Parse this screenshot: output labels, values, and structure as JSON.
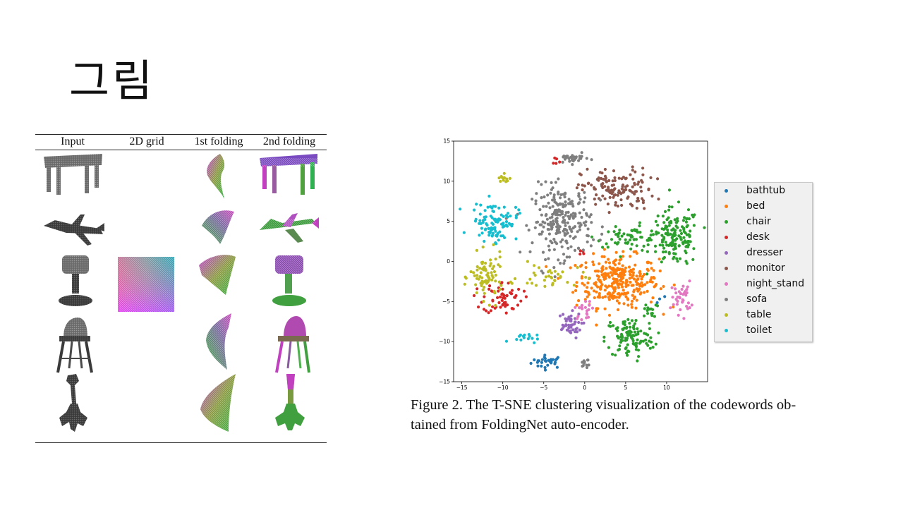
{
  "slide": {
    "title": "그림"
  },
  "table": {
    "headers": [
      "Input",
      "2D grid",
      "1st folding",
      "2nd folding"
    ]
  },
  "legend": [
    {
      "label": "bathtub",
      "color": "#1f77b4"
    },
    {
      "label": "bed",
      "color": "#ff7f0e"
    },
    {
      "label": "chair",
      "color": "#2ca02c"
    },
    {
      "label": "desk",
      "color": "#d62728"
    },
    {
      "label": "dresser",
      "color": "#9467bd"
    },
    {
      "label": "monitor",
      "color": "#8c564b"
    },
    {
      "label": "night_stand",
      "color": "#e377c2"
    },
    {
      "label": "sofa",
      "color": "#7f7f7f"
    },
    {
      "label": "table",
      "color": "#bcbd22"
    },
    {
      "label": "toilet",
      "color": "#17becf"
    }
  ],
  "caption": {
    "line1": "Figure 2. The T-SNE clustering visualization of the codewords ob-",
    "line2": "tained from FoldingNet auto-encoder."
  },
  "chart_data": {
    "type": "scatter",
    "title": "",
    "xlabel": "",
    "ylabel": "",
    "xlim": [
      -16,
      15
    ],
    "ylim": [
      -15,
      15
    ],
    "xticks": [
      "−15",
      "−10",
      "−5",
      "0",
      "5",
      "10"
    ],
    "yticks": [
      "15",
      "10",
      "5",
      "0",
      "−5",
      "−10",
      "−15"
    ],
    "legend_position": "outside-right",
    "series": [
      {
        "name": "bathtub",
        "clusters": [
          {
            "cx": -4.5,
            "cy": -12.5,
            "sx": 1.0,
            "sy": 0.4,
            "n": 30
          },
          {
            "cx": 9.5,
            "cy": -5.0,
            "sx": 0.4,
            "sy": 0.4,
            "n": 3
          }
        ]
      },
      {
        "name": "bed",
        "clusters": [
          {
            "cx": 4.0,
            "cy": -2.5,
            "sx": 2.5,
            "sy": 1.6,
            "n": 300
          }
        ]
      },
      {
        "name": "chair",
        "clusters": [
          {
            "cx": 11.0,
            "cy": 3.0,
            "sx": 1.5,
            "sy": 1.8,
            "n": 150
          },
          {
            "cx": 5.5,
            "cy": 3.0,
            "sx": 2.0,
            "sy": 0.6,
            "n": 60
          },
          {
            "cx": 5.5,
            "cy": -9.5,
            "sx": 1.5,
            "sy": 1.3,
            "n": 110
          },
          {
            "cx": 8.0,
            "cy": -6.0,
            "sx": 0.6,
            "sy": 0.6,
            "n": 15
          }
        ]
      },
      {
        "name": "desk",
        "clusters": [
          {
            "cx": -10.0,
            "cy": -4.5,
            "sx": 1.2,
            "sy": 1.0,
            "n": 60
          },
          {
            "cx": -3.5,
            "cy": 12.5,
            "sx": 0.3,
            "sy": 0.3,
            "n": 5
          },
          {
            "cx": -0.5,
            "cy": 1.0,
            "sx": 0.3,
            "sy": 0.3,
            "n": 4
          }
        ]
      },
      {
        "name": "dresser",
        "clusters": [
          {
            "cx": -2.0,
            "cy": -8.0,
            "sx": 0.8,
            "sy": 0.8,
            "n": 45
          }
        ]
      },
      {
        "name": "monitor",
        "clusters": [
          {
            "cx": 4.0,
            "cy": 9.0,
            "sx": 2.2,
            "sy": 1.3,
            "n": 130
          }
        ]
      },
      {
        "name": "night_stand",
        "clusters": [
          {
            "cx": 11.8,
            "cy": -4.5,
            "sx": 0.6,
            "sy": 1.0,
            "n": 35
          },
          {
            "cx": 0.0,
            "cy": -6.0,
            "sx": 0.6,
            "sy": 0.6,
            "n": 20
          }
        ]
      },
      {
        "name": "sofa",
        "clusters": [
          {
            "cx": -2.8,
            "cy": 5.0,
            "sx": 1.8,
            "sy": 2.2,
            "n": 240
          },
          {
            "cx": -1.5,
            "cy": 12.8,
            "sx": 1.0,
            "sy": 0.3,
            "n": 30
          },
          {
            "cx": 0.0,
            "cy": -12.5,
            "sx": 0.3,
            "sy": 0.6,
            "n": 12
          }
        ]
      },
      {
        "name": "table",
        "clusters": [
          {
            "cx": -12.0,
            "cy": -2.0,
            "sx": 1.0,
            "sy": 1.4,
            "n": 80
          },
          {
            "cx": -10.0,
            "cy": 10.2,
            "sx": 0.6,
            "sy": 0.3,
            "n": 12
          },
          {
            "cx": -4.0,
            "cy": -2.0,
            "sx": 2.0,
            "sy": 0.8,
            "n": 35
          }
        ]
      },
      {
        "name": "toilet",
        "clusters": [
          {
            "cx": -11.0,
            "cy": 5.0,
            "sx": 1.4,
            "sy": 1.2,
            "n": 100
          },
          {
            "cx": -7.5,
            "cy": -9.5,
            "sx": 0.8,
            "sy": 0.3,
            "n": 15
          }
        ]
      }
    ]
  }
}
